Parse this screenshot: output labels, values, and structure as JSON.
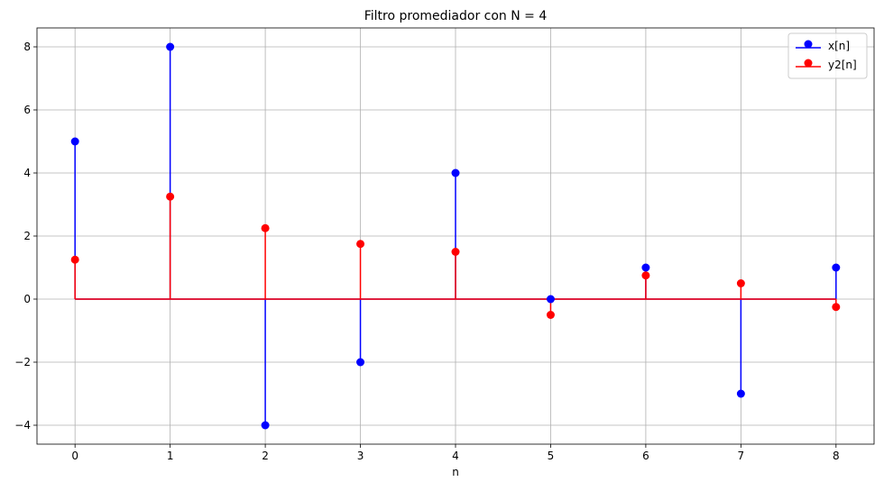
{
  "chart_data": {
    "type": "stem",
    "title": "Filtro promediador con N = 4",
    "xlabel": "n",
    "ylabel": "",
    "xlim": [
      -0.4,
      8.4
    ],
    "ylim": [
      -4.6,
      8.6
    ],
    "x_ticks": [
      0,
      1,
      2,
      3,
      4,
      5,
      6,
      7,
      8
    ],
    "y_ticks": [
      -4,
      -2,
      0,
      2,
      4,
      6,
      8
    ],
    "grid": true,
    "legend_position": "top-right",
    "series": [
      {
        "name": "x[n]",
        "color": "#0000ff",
        "x": [
          0,
          1,
          2,
          3,
          4,
          5,
          6,
          7,
          8
        ],
        "values": [
          5,
          8,
          -4,
          -2,
          4,
          0,
          1,
          -3,
          1
        ]
      },
      {
        "name": "y2[n]",
        "color": "#ff0000",
        "x": [
          0,
          1,
          2,
          3,
          4,
          5,
          6,
          7,
          8
        ],
        "values": [
          1.25,
          3.25,
          2.25,
          1.75,
          1.5,
          -0.5,
          0.75,
          0.5,
          -0.25
        ]
      }
    ]
  }
}
